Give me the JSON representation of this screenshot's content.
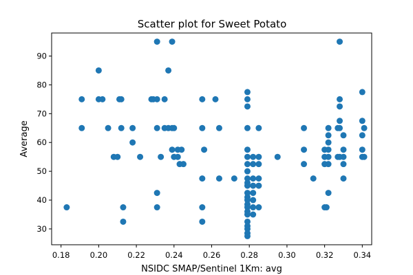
{
  "chart_data": {
    "type": "scatter",
    "title": "Scatter plot for Sweet Potato",
    "xlabel": "NSIDC SMAP/Sentinel 1Km: avg",
    "ylabel": "Average",
    "xlim": [
      0.175,
      0.345
    ],
    "ylim": [
      24.5,
      98
    ],
    "xticks": [
      0.18,
      0.2,
      0.22,
      0.24,
      0.26,
      0.28,
      0.3,
      0.32,
      0.34
    ],
    "xtick_labels": [
      "0.18",
      "0.20",
      "0.22",
      "0.24",
      "0.26",
      "0.28",
      "0.30",
      "0.32",
      "0.34"
    ],
    "yticks": [
      30,
      40,
      50,
      60,
      70,
      80,
      90
    ],
    "ytick_labels": [
      "30",
      "40",
      "50",
      "60",
      "70",
      "80",
      "90"
    ],
    "grid": false,
    "marker_color": "#1f77b4",
    "points": [
      [
        0.183,
        37.5
      ],
      [
        0.191,
        75
      ],
      [
        0.191,
        65
      ],
      [
        0.2,
        85
      ],
      [
        0.2,
        75
      ],
      [
        0.202,
        75
      ],
      [
        0.205,
        65
      ],
      [
        0.208,
        55
      ],
      [
        0.21,
        55
      ],
      [
        0.211,
        75
      ],
      [
        0.212,
        75
      ],
      [
        0.212,
        65
      ],
      [
        0.213,
        37.5
      ],
      [
        0.213,
        32.5
      ],
      [
        0.218,
        65
      ],
      [
        0.218,
        60
      ],
      [
        0.222,
        55
      ],
      [
        0.228,
        75
      ],
      [
        0.229,
        75
      ],
      [
        0.231,
        95
      ],
      [
        0.231,
        75
      ],
      [
        0.231,
        65
      ],
      [
        0.231,
        42.5
      ],
      [
        0.231,
        37.5
      ],
      [
        0.233,
        55
      ],
      [
        0.235,
        75
      ],
      [
        0.235,
        65
      ],
      [
        0.237,
        85
      ],
      [
        0.237,
        65
      ],
      [
        0.239,
        95
      ],
      [
        0.239,
        65
      ],
      [
        0.239,
        57.5
      ],
      [
        0.24,
        65
      ],
      [
        0.24,
        55
      ],
      [
        0.242,
        57.5
      ],
      [
        0.242,
        55
      ],
      [
        0.243,
        52.5
      ],
      [
        0.244,
        57.5
      ],
      [
        0.245,
        52.5
      ],
      [
        0.255,
        75
      ],
      [
        0.255,
        65
      ],
      [
        0.255,
        47.5
      ],
      [
        0.255,
        37.5
      ],
      [
        0.255,
        32.5
      ],
      [
        0.256,
        57.5
      ],
      [
        0.262,
        75
      ],
      [
        0.264,
        65
      ],
      [
        0.264,
        47.5
      ],
      [
        0.272,
        47.5
      ],
      [
        0.279,
        77.5
      ],
      [
        0.279,
        75
      ],
      [
        0.279,
        72.5
      ],
      [
        0.279,
        65
      ],
      [
        0.279,
        57.5
      ],
      [
        0.279,
        55
      ],
      [
        0.279,
        52.5
      ],
      [
        0.279,
        50
      ],
      [
        0.279,
        47.5
      ],
      [
        0.279,
        46
      ],
      [
        0.279,
        45
      ],
      [
        0.279,
        42.5
      ],
      [
        0.279,
        41
      ],
      [
        0.279,
        40
      ],
      [
        0.279,
        38.5
      ],
      [
        0.279,
        37.5
      ],
      [
        0.279,
        36
      ],
      [
        0.279,
        35
      ],
      [
        0.279,
        32.5
      ],
      [
        0.279,
        31
      ],
      [
        0.279,
        30
      ],
      [
        0.279,
        28.5
      ],
      [
        0.279,
        27.5
      ],
      [
        0.282,
        55
      ],
      [
        0.282,
        52.5
      ],
      [
        0.282,
        47.5
      ],
      [
        0.282,
        45
      ],
      [
        0.282,
        42.5
      ],
      [
        0.282,
        40
      ],
      [
        0.282,
        37.5
      ],
      [
        0.282,
        35
      ],
      [
        0.285,
        65
      ],
      [
        0.285,
        55
      ],
      [
        0.285,
        52.5
      ],
      [
        0.285,
        47.5
      ],
      [
        0.285,
        45
      ],
      [
        0.285,
        37.5
      ],
      [
        0.295,
        55
      ],
      [
        0.309,
        65
      ],
      [
        0.309,
        57.5
      ],
      [
        0.309,
        52.5
      ],
      [
        0.314,
        47.5
      ],
      [
        0.32,
        57.5
      ],
      [
        0.32,
        55
      ],
      [
        0.32,
        52.5
      ],
      [
        0.32,
        37.5
      ],
      [
        0.321,
        37.5
      ],
      [
        0.322,
        65
      ],
      [
        0.322,
        62.5
      ],
      [
        0.322,
        60
      ],
      [
        0.322,
        57.5
      ],
      [
        0.322,
        55
      ],
      [
        0.322,
        52.5
      ],
      [
        0.322,
        42.5
      ],
      [
        0.327,
        65
      ],
      [
        0.327,
        55
      ],
      [
        0.328,
        95
      ],
      [
        0.328,
        75
      ],
      [
        0.328,
        72.5
      ],
      [
        0.328,
        67.5
      ],
      [
        0.328,
        65
      ],
      [
        0.328,
        55
      ],
      [
        0.33,
        62.5
      ],
      [
        0.33,
        57.5
      ],
      [
        0.33,
        55
      ],
      [
        0.33,
        52.5
      ],
      [
        0.33,
        47.5
      ],
      [
        0.34,
        77.5
      ],
      [
        0.34,
        67.5
      ],
      [
        0.34,
        62.5
      ],
      [
        0.34,
        57.5
      ],
      [
        0.34,
        55
      ],
      [
        0.341,
        65
      ],
      [
        0.341,
        55
      ]
    ]
  }
}
